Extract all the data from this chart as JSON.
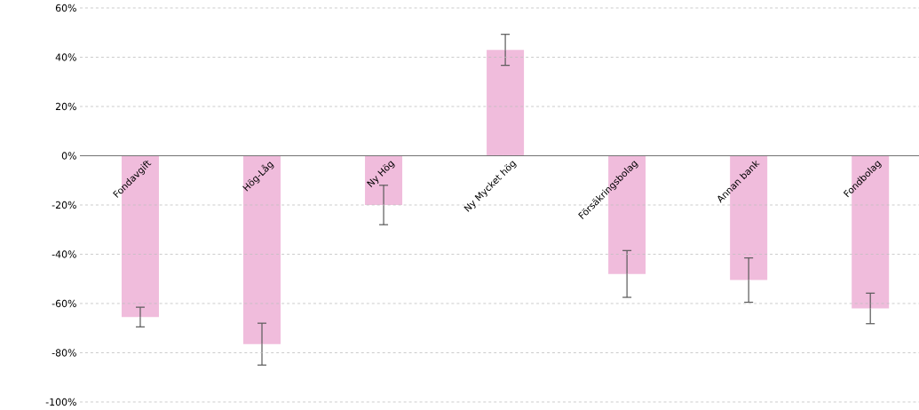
{
  "chart_data": {
    "type": "bar",
    "categories": [
      "Fondavgift",
      "Hög-Låg",
      "Ny Hög",
      "Ny Mycket hög",
      "Försäkringsbolag",
      "Annan bank",
      "Fondbolag"
    ],
    "values": [
      -65.5,
      -76.5,
      -20,
      43,
      -48,
      -50.5,
      -62
    ],
    "errors": [
      4,
      8.5,
      8,
      6.3,
      9.5,
      9,
      6.2
    ],
    "color": "#f0bcdc",
    "ylim": [
      -100,
      60
    ],
    "yticks": [
      {
        "value": -100,
        "label": "-100%"
      },
      {
        "value": -80,
        "label": "-80%"
      },
      {
        "value": -60,
        "label": "-60%"
      },
      {
        "value": -40,
        "label": "-40%"
      },
      {
        "value": -20,
        "label": "-20%"
      },
      {
        "value": 0,
        "label": "0%"
      },
      {
        "value": 20,
        "label": "20%"
      },
      {
        "value": 40,
        "label": "40%"
      },
      {
        "value": 60,
        "label": "60%"
      }
    ],
    "grid": "y"
  }
}
